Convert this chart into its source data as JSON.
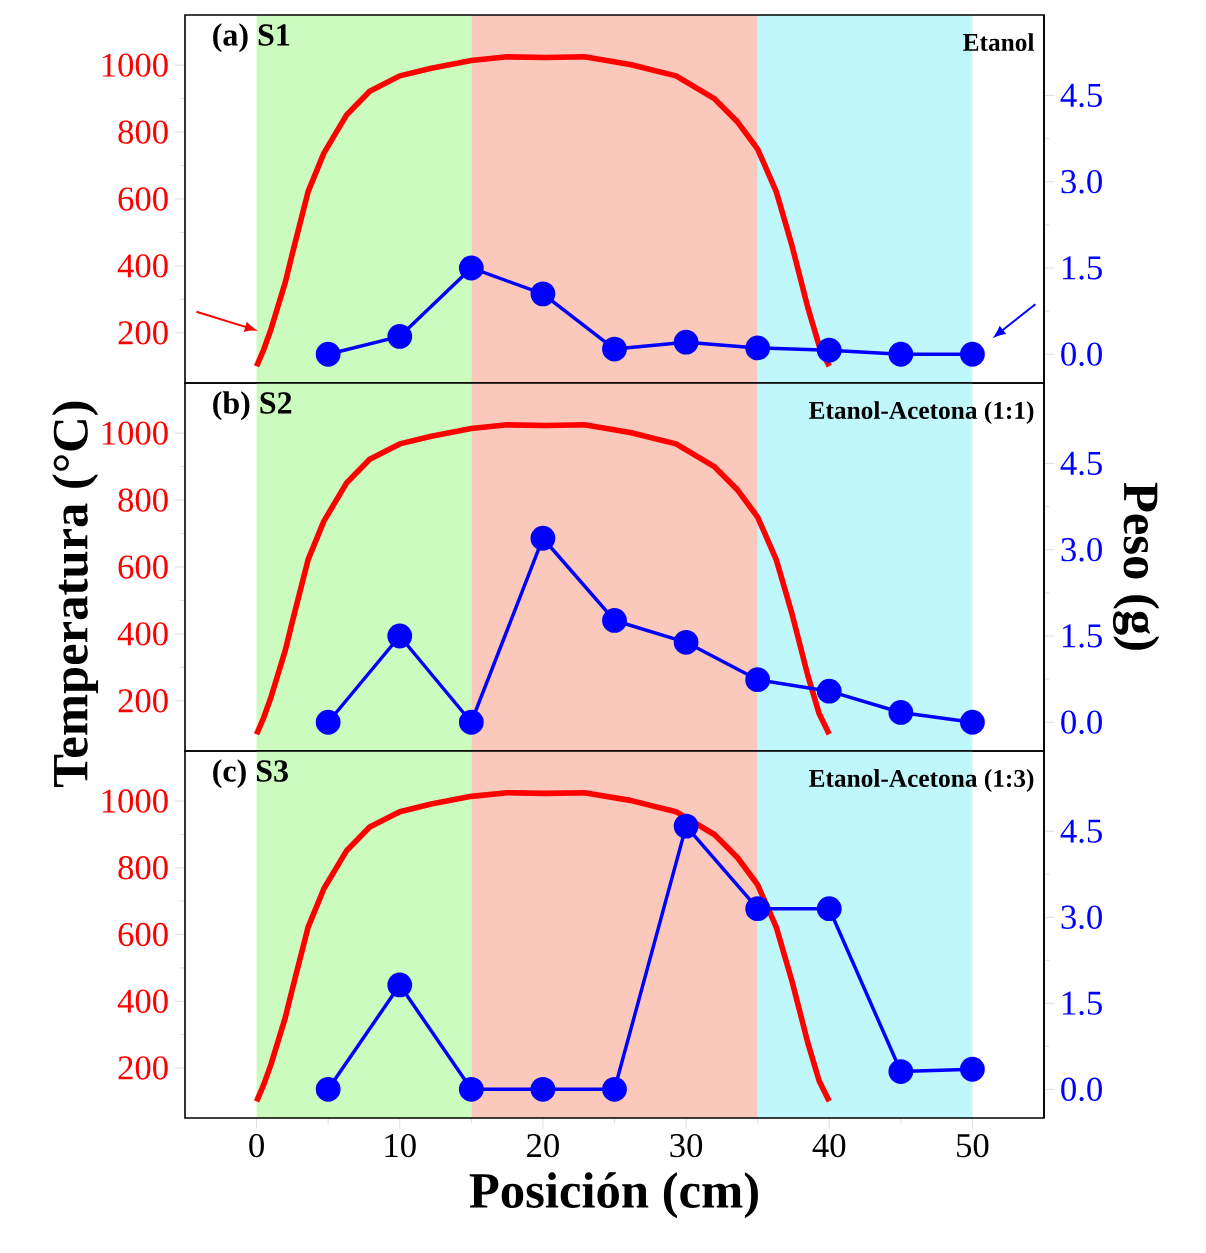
{
  "chart_data": [
    {
      "type": "line",
      "title": "(a) S1",
      "subtitle": "Etanol",
      "xlim": [
        -5,
        55
      ],
      "ylim": [
        50,
        1150
      ],
      "yticks": [
        200,
        400,
        600,
        800,
        1000
      ],
      "y2lim": [
        -0.5,
        5.9
      ],
      "y2ticks": [
        {
          "value": 0,
          "label": "0.0"
        },
        {
          "value": 1.5,
          "label": "1.5"
        },
        {
          "value": 3,
          "label": "3.0"
        },
        {
          "value": 4.5,
          "label": "4.5"
        }
      ],
      "tick_labels": "y",
      "bands": [
        {
          "axis": "x",
          "from": 0,
          "to": 15,
          "color": "#ccfbbf"
        },
        {
          "axis": "x",
          "from": 15,
          "to": 35,
          "color": "#fbc8bc"
        },
        {
          "axis": "x",
          "from": 35,
          "to": 50,
          "color": "#bff7fb"
        }
      ],
      "series": [
        {
          "color": "#ff0000",
          "marker": "none",
          "x": [
            0,
            0.5,
            1,
            2,
            2.5,
            3.6,
            4.7,
            6.3,
            7.9,
            10,
            12.2,
            15,
            17.5,
            20.2,
            22.9,
            26.1,
            29.3,
            32,
            33.6,
            35,
            36.3,
            37.4,
            38.5,
            39.3,
            40
          ],
          "values": [
            100,
            150,
            210,
            350,
            437,
            622,
            737,
            852,
            922,
            968,
            991,
            1014,
            1025,
            1023,
            1025,
            1002,
            968,
            899,
            830,
            749,
            622,
            460,
            276,
            161,
            100
          ]
        },
        {
          "color": "#0000ff",
          "marker": "circle",
          "axis": "y2",
          "x": [
            5,
            10,
            15,
            20,
            25,
            30,
            35,
            40,
            45,
            50
          ],
          "values": [
            0,
            0.31,
            1.5,
            1.05,
            0.09,
            0.21,
            0.11,
            0.07,
            0,
            0
          ]
        }
      ]
    },
    {
      "type": "line",
      "title": "(b) S2",
      "subtitle": "Etanol-Acetona (1:1)",
      "ylabel": "Temperatura (°C)",
      "y2label": "Peso (g)",
      "xlim": [
        -5,
        55
      ],
      "ylim": [
        50,
        1150
      ],
      "yticks": [
        200,
        400,
        600,
        800,
        1000
      ],
      "y2lim": [
        -0.5,
        5.9
      ],
      "y2ticks": [
        {
          "value": 0,
          "label": "0.0"
        },
        {
          "value": 1.5,
          "label": "1.5"
        },
        {
          "value": 3,
          "label": "3.0"
        },
        {
          "value": 4.5,
          "label": "4.5"
        }
      ],
      "tick_labels": "y",
      "bands": [
        {
          "axis": "x",
          "from": 0,
          "to": 15,
          "color": "#ccfbbf"
        },
        {
          "axis": "x",
          "from": 15,
          "to": 35,
          "color": "#fbc8bc"
        },
        {
          "axis": "x",
          "from": 35,
          "to": 50,
          "color": "#bff7fb"
        }
      ],
      "series": [
        {
          "color": "#ff0000",
          "marker": "none",
          "x": [
            0,
            0.5,
            1,
            2,
            2.5,
            3.6,
            4.7,
            6.3,
            7.9,
            10,
            12.2,
            15,
            17.5,
            20.2,
            22.9,
            26.1,
            29.3,
            32,
            33.6,
            35,
            36.3,
            37.4,
            38.5,
            39.3,
            40
          ],
          "values": [
            100,
            150,
            210,
            350,
            437,
            622,
            737,
            852,
            922,
            968,
            991,
            1014,
            1025,
            1023,
            1025,
            1002,
            968,
            899,
            830,
            749,
            622,
            460,
            276,
            161,
            100
          ]
        },
        {
          "color": "#0000ff",
          "marker": "circle",
          "axis": "y2",
          "x": [
            5,
            10,
            15,
            20,
            25,
            30,
            35,
            40,
            45,
            50
          ],
          "values": [
            0,
            1.5,
            0,
            3.2,
            1.77,
            1.39,
            0.74,
            0.54,
            0.17,
            0
          ]
        }
      ]
    },
    {
      "type": "line",
      "title": "(c) S3",
      "subtitle": "Etanol-Acetona (1:3)",
      "xlabel": "Posición (cm)",
      "xlim": [
        -5,
        55
      ],
      "xticks": [
        0,
        10,
        20,
        30,
        40,
        50
      ],
      "ylim": [
        50,
        1150
      ],
      "yticks": [
        200,
        400,
        600,
        800,
        1000
      ],
      "y2lim": [
        -0.5,
        5.9
      ],
      "y2ticks": [
        {
          "value": 0,
          "label": "0.0"
        },
        {
          "value": 1.5,
          "label": "1.5"
        },
        {
          "value": 3,
          "label": "3.0"
        },
        {
          "value": 4.5,
          "label": "4.5"
        }
      ],
      "bands": [
        {
          "axis": "x",
          "from": 0,
          "to": 15,
          "color": "#ccfbbf"
        },
        {
          "axis": "x",
          "from": 15,
          "to": 35,
          "color": "#fbc8bc"
        },
        {
          "axis": "x",
          "from": 35,
          "to": 50,
          "color": "#bff7fb"
        }
      ],
      "series": [
        {
          "color": "#ff0000",
          "marker": "none",
          "x": [
            0,
            0.5,
            1,
            2,
            2.5,
            3.6,
            4.7,
            6.3,
            7.9,
            10,
            12.2,
            15,
            17.5,
            20.2,
            22.9,
            26.1,
            29.3,
            32,
            33.6,
            35,
            36.3,
            37.4,
            38.5,
            39.3,
            40
          ],
          "values": [
            100,
            150,
            210,
            350,
            437,
            622,
            737,
            852,
            922,
            968,
            991,
            1014,
            1025,
            1023,
            1025,
            1002,
            968,
            899,
            830,
            749,
            622,
            460,
            276,
            161,
            100
          ]
        },
        {
          "color": "#0000ff",
          "marker": "circle",
          "axis": "y2",
          "x": [
            5,
            10,
            15,
            20,
            25,
            30,
            35,
            40,
            45,
            50
          ],
          "values": [
            0,
            1.82,
            0,
            0,
            0,
            4.59,
            3.15,
            3.15,
            0.31,
            0.35
          ]
        }
      ]
    }
  ]
}
